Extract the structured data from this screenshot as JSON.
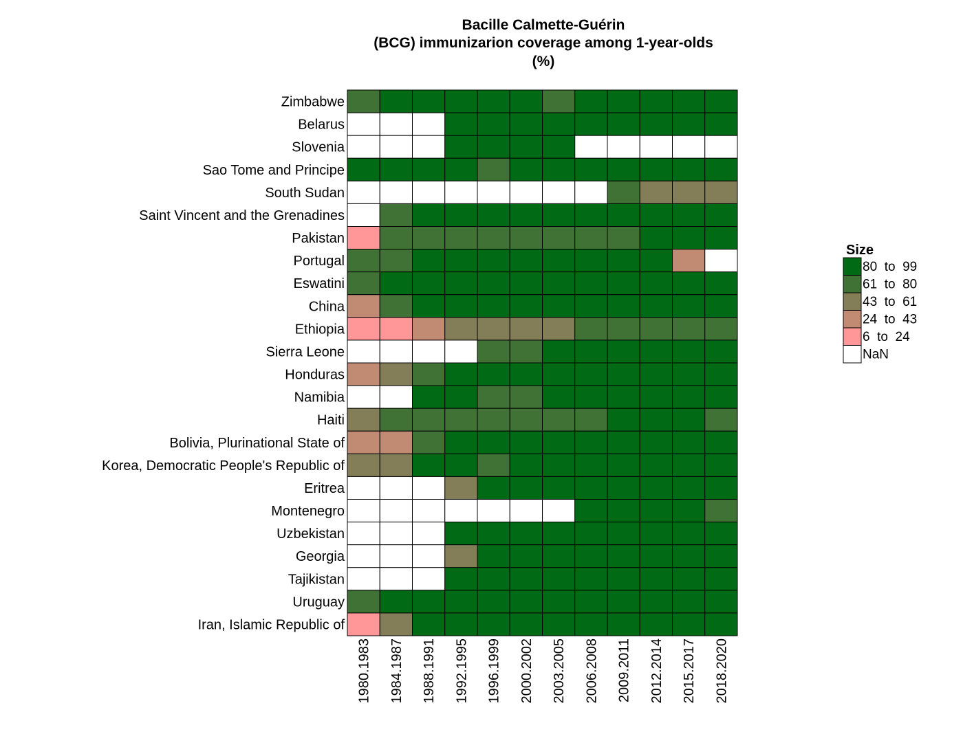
{
  "chart_data": {
    "type": "heatmap",
    "title_lines": [
      "Bacille Calmette-Guérin",
      "(BCG) immunizarion coverage among 1-year-olds",
      "(%)"
    ],
    "xlabel": "",
    "ylabel": "",
    "x": [
      "1980.1983",
      "1984.1987",
      "1988.1991",
      "1992.1995",
      "1996.1999",
      "2000.2002",
      "2003.2005",
      "2006.2008",
      "2009.2011",
      "2012.2014",
      "2015.2017",
      "2018.2020"
    ],
    "y": [
      "Zimbabwe",
      "Belarus",
      "Slovenia",
      "Sao Tome and Principe",
      "South Sudan",
      "Saint Vincent and the Grenadines",
      "Pakistan",
      "Portugal",
      "Eswatini",
      "China",
      "Ethiopia",
      "Sierra Leone",
      "Honduras",
      "Namibia",
      "Haiti",
      "Bolivia, Plurinational State of",
      "Korea, Democratic People's Republic of",
      "Eritrea",
      "Montenegro",
      "Uzbekistan",
      "Georgia",
      "Tajikistan",
      "Uruguay",
      "Iran, Islamic Republic of"
    ],
    "value_encoding": "legend bin index (0 = 80 to 99, 1 = 61 to 80, 2 = 43 to 61, 3 = 24 to 43, 4 = 6 to 24, 5 = NaN)",
    "bins": [
      {
        "label": "80  to  99",
        "min": 80,
        "max": 99,
        "color": "#006b14"
      },
      {
        "label": "61  to  80",
        "min": 61,
        "max": 80,
        "color": "#3f7234"
      },
      {
        "label": "43  to  61",
        "min": 43,
        "max": 61,
        "color": "#837e57"
      },
      {
        "label": "24  to  43",
        "min": 24,
        "max": 43,
        "color": "#c18a73"
      },
      {
        "label": "6  to  24",
        "min": 6,
        "max": 24,
        "color": "#ff9698"
      },
      {
        "label": "NaN",
        "min": null,
        "max": null,
        "color": "#ffffff"
      }
    ],
    "values": [
      [
        1,
        0,
        0,
        0,
        0,
        0,
        1,
        0,
        0,
        0,
        0,
        0
      ],
      [
        5,
        5,
        5,
        0,
        0,
        0,
        0,
        0,
        0,
        0,
        0,
        0
      ],
      [
        5,
        5,
        5,
        0,
        0,
        0,
        0,
        5,
        5,
        5,
        5,
        5
      ],
      [
        0,
        0,
        0,
        0,
        1,
        0,
        0,
        0,
        0,
        0,
        0,
        0
      ],
      [
        5,
        5,
        5,
        5,
        5,
        5,
        5,
        5,
        1,
        2,
        2,
        2
      ],
      [
        5,
        1,
        0,
        0,
        0,
        0,
        0,
        0,
        0,
        0,
        0,
        0
      ],
      [
        4,
        1,
        1,
        1,
        1,
        1,
        1,
        1,
        1,
        0,
        0,
        0
      ],
      [
        1,
        1,
        0,
        0,
        0,
        0,
        0,
        0,
        0,
        0,
        3,
        5
      ],
      [
        1,
        0,
        0,
        0,
        0,
        0,
        0,
        0,
        0,
        0,
        0,
        0
      ],
      [
        3,
        1,
        0,
        0,
        0,
        0,
        0,
        0,
        0,
        0,
        0,
        0
      ],
      [
        4,
        4,
        3,
        2,
        2,
        2,
        2,
        1,
        1,
        1,
        1,
        1
      ],
      [
        5,
        5,
        5,
        5,
        1,
        1,
        0,
        0,
        0,
        0,
        0,
        0
      ],
      [
        3,
        2,
        1,
        0,
        0,
        0,
        0,
        0,
        0,
        0,
        0,
        0
      ],
      [
        5,
        5,
        0,
        0,
        1,
        1,
        0,
        0,
        0,
        0,
        0,
        0
      ],
      [
        2,
        1,
        1,
        1,
        1,
        1,
        1,
        1,
        0,
        0,
        0,
        1
      ],
      [
        3,
        3,
        1,
        0,
        0,
        0,
        0,
        0,
        0,
        0,
        0,
        0
      ],
      [
        2,
        2,
        0,
        0,
        1,
        0,
        0,
        0,
        0,
        0,
        0,
        0
      ],
      [
        5,
        5,
        5,
        2,
        0,
        0,
        0,
        0,
        0,
        0,
        0,
        0
      ],
      [
        5,
        5,
        5,
        5,
        5,
        5,
        5,
        0,
        0,
        0,
        0,
        1
      ],
      [
        5,
        5,
        5,
        0,
        0,
        0,
        0,
        0,
        0,
        0,
        0,
        0
      ],
      [
        5,
        5,
        5,
        2,
        0,
        0,
        0,
        0,
        0,
        0,
        0,
        0
      ],
      [
        5,
        5,
        5,
        0,
        0,
        0,
        0,
        0,
        0,
        0,
        0,
        0
      ],
      [
        1,
        0,
        0,
        0,
        0,
        0,
        0,
        0,
        0,
        0,
        0,
        0
      ],
      [
        4,
        2,
        0,
        0,
        0,
        0,
        0,
        0,
        0,
        0,
        0,
        0
      ]
    ],
    "legend": {
      "title": "Size",
      "placement": "right",
      "entries": [
        "80  to  99",
        "61  to  80",
        "43  to  61",
        "24  to  43",
        "6  to  24",
        "NaN"
      ]
    },
    "grid": false
  }
}
